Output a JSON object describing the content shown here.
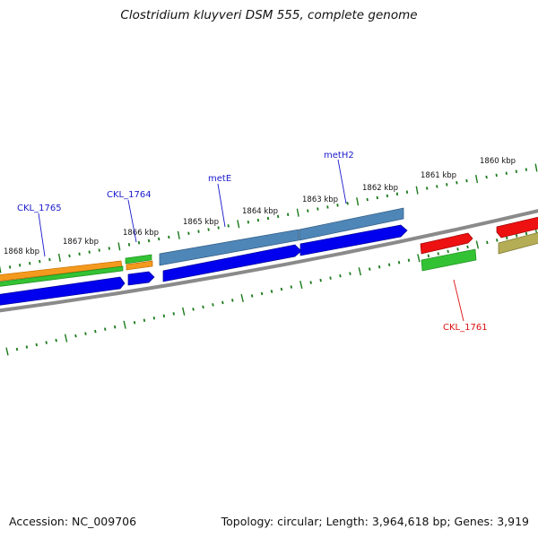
{
  "title": "Clostridium kluyveri DSM 555, complete genome",
  "footer": {
    "accession": "Accession: NC_009706",
    "summary": "Topology: circular; Length: 3,964,618 bp; Genes: 3,919"
  },
  "ticks": [
    "1868 kbp",
    "1867 kbp",
    "1866 kbp",
    "1865 kbp",
    "1864 kbp",
    "1863 kbp",
    "1862 kbp",
    "1861 kbp",
    "1860 kbp"
  ],
  "gene_labels": [
    "CKL_1765",
    "CKL_1764",
    "metE",
    "metH2",
    "CKL_1761"
  ],
  "colors": {
    "forward_cds": "#0000ee",
    "orange": "#f39a1e",
    "green": "#33c233",
    "steelblue": "#4f86b8",
    "red": "#ee1111",
    "olive": "#b5ad55",
    "backbone": "#8a8a8a",
    "tick": "#1a7a1a",
    "label_blue": "#1a1acc",
    "label_red": "#dd1111"
  }
}
